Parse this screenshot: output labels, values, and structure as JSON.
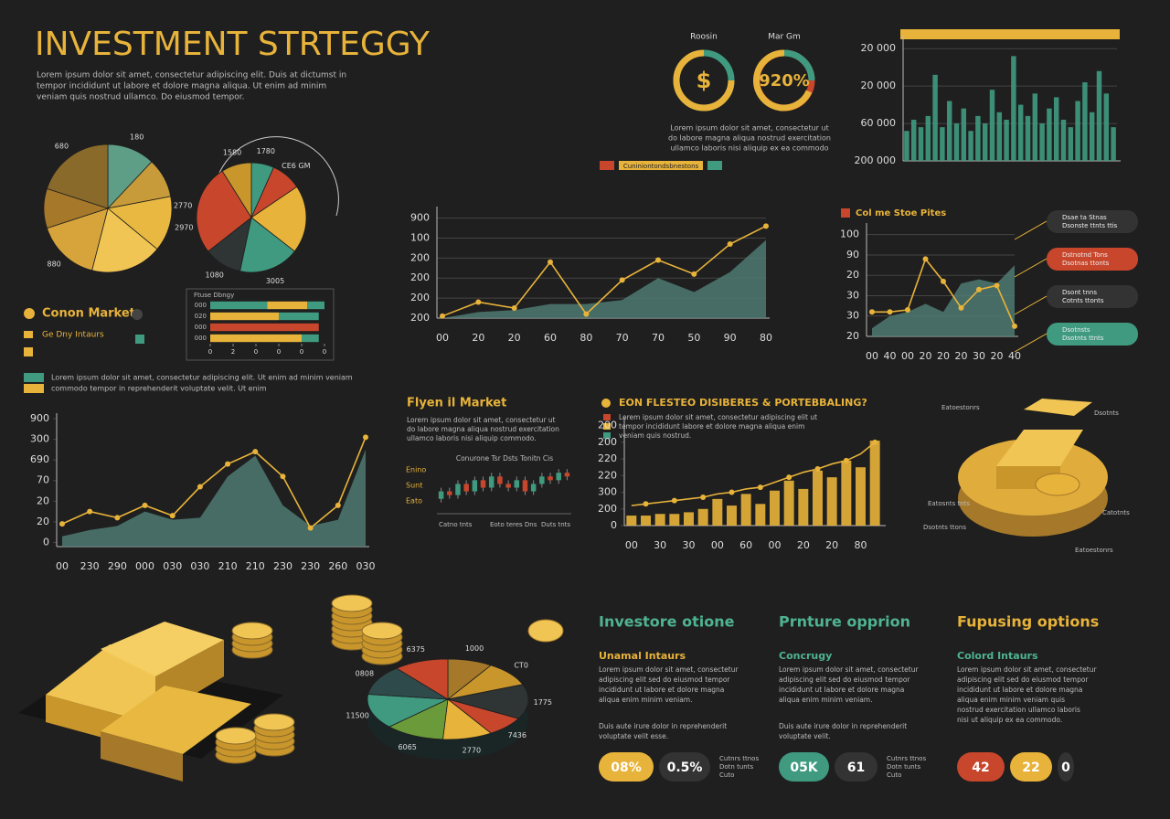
{
  "header": {
    "title": "INVESTMENT STRTEGGY",
    "lines": [
      "Lorem ipsum dolor sit amet, consectetur adipiscing elit. Duis at dictumst in",
      "tempor incididunt ut labore et dolore magna aliqua. Ut enim ad minim",
      "veniam quis nostrud ullamco. Do eiusmod tempor."
    ]
  },
  "gauges": [
    {
      "label": "Roosin",
      "value": "$"
    },
    {
      "label": "Mar Gm",
      "value": "920%"
    }
  ],
  "gauge_note": [
    "Lorem ipsum dolor sit amet, consectetur ut",
    "do labore magna aliqua nostrud exercitation",
    "ullamco laboris nisi aliquip ex ea commodo"
  ],
  "gauge_tag": "Cuniniontondsbnestons",
  "market": {
    "title": "Conon Market",
    "subtitle": "Ge Dny Intaurs",
    "note": [
      "Lorem ipsum dolor sit amet, consectetur adipiscing elit. Ut enim ad minim veniam",
      "commodo tempor in reprehenderit voluptate velit. Ut enim"
    ]
  },
  "callouts": [
    [
      "Dsae ta Stnas",
      "Dsonste ttnts ttis"
    ],
    [
      "Dstnotnd Tons",
      "Dsotnas ttonts"
    ],
    [
      "Dsont tnns",
      "Cotnts ttonts"
    ],
    [
      "Dsotnsts",
      "Dsotnts ttnts"
    ]
  ],
  "flyen": {
    "title": "Flyen il Market",
    "lines": [
      "Lorem ipsum dolor sit amet, consectetur ut",
      "do labore magna aliqua nostrud exercitation",
      "ullamco laboris nisi aliquip commodo."
    ],
    "candle_title": "Conurone Tsr Dsts Tonitn Cis",
    "candle_labels": [
      "Enino",
      "Sunt",
      "Eato"
    ],
    "candle_foot": [
      "Catno tnts",
      "Eoto teres Dns",
      "Duts tnts"
    ]
  },
  "eon": {
    "title": "EON FLESTEO DISIBERES & PORTEBBALING?",
    "lines": [
      "Lorem ipsum dolor sit amet, consectetur adipiscing elit ut",
      "tempor incididunt labore et dolore magna aliqua enim",
      "veniam quis nostrud."
    ]
  },
  "gold_labels": [
    "Eatoestonrs",
    "Dsotnts",
    "Eatosnts tnts",
    "Catotnts",
    "Dsotnts ttons",
    "Eatoestonrs"
  ],
  "cards": [
    {
      "title": "Investore otione",
      "subtitle": "Unamal Intaurs",
      "lines": [
        "Lorem ipsum dolor sit amet, consectetur",
        "adipiscing elit sed do eiusmod tempor",
        "incididunt ut labore et dolore magna",
        "aliqua enim minim veniam."
      ],
      "lines2": [
        "Duis aute irure dolor in reprehenderit",
        "voluptate velit esse."
      ],
      "pills": [
        "08%",
        "0.5%"
      ],
      "pill_note": [
        "Cutnrs ttnos",
        "Dotn tunts",
        "Cuto"
      ]
    },
    {
      "title": "Prnture opprion",
      "subtitle": "Concrugy",
      "lines": [
        "Lorem ipsum dolor sit amet, consectetur",
        "adipiscing elit sed do eiusmod tempor",
        "incididunt ut labore et dolore magna",
        "aliqua enim minim veniam."
      ],
      "lines2": [
        "Duis aute irure dolor in reprehenderit",
        "voluptate velit."
      ],
      "pills": [
        "05K",
        "61"
      ],
      "pill_note": [
        "Cutnrs ttnos",
        "Dotn tunts",
        "Cuto"
      ]
    },
    {
      "title": "Fupusing options",
      "subtitle": "Colord Intaurs",
      "lines": [
        "Lorem ipsum dolor sit amet, consectetur",
        "adipiscing elit sed do eiusmod tempor",
        "incididunt ut labore et dolore magna",
        "aliqua enim minim veniam quis",
        "nostrud exercitation ullamco laboris",
        "nisi ut aliquip ex ea commodo."
      ],
      "pills": [
        "42",
        "22",
        "0"
      ]
    }
  ],
  "chart_data": [
    {
      "type": "pie",
      "categories": [
        "180",
        null,
        "2970",
        null,
        "880",
        null,
        "680"
      ],
      "values": [
        12,
        10,
        14,
        18,
        16,
        10,
        20
      ],
      "colors": [
        "#5e9e86",
        "#c79a3a",
        "#e8b840",
        "#f0c553",
        "#d6a43a",
        "#a5782a",
        "#8a6a2a"
      ]
    },
    {
      "type": "pie",
      "categories": [
        "1780",
        "CE6 GM",
        null,
        "3005",
        "1080",
        "2770",
        "1580"
      ],
      "values": [
        6,
        8,
        18,
        16,
        10,
        24,
        8
      ],
      "colors": [
        "#3f9a7f",
        "#c8462c",
        "#e8b33a",
        "#3f9a7f",
        "#2f3434",
        "#c8462c",
        "#c9962b"
      ]
    },
    {
      "type": "line",
      "categories": [
        "00",
        "20",
        "20",
        "60",
        "80",
        "70",
        "70",
        "50",
        "90",
        "80"
      ],
      "ylim": [
        0,
        5.3
      ],
      "yticks": [
        {
          "value": 0,
          "label": "200"
        },
        {
          "value": 1,
          "label": "200"
        },
        {
          "value": 2,
          "label": "200"
        },
        {
          "value": 3,
          "label": "200"
        },
        {
          "value": 4,
          "label": "100"
        },
        {
          "value": 5,
          "label": "900"
        }
      ],
      "series": [
        {
          "color": "#4d7a72",
          "fill": true,
          "values": [
            0,
            0.3,
            0.4,
            0.7,
            0.7,
            0.9,
            2.0,
            1.3,
            2.3,
            3.9
          ]
        },
        {
          "color": "#e8b33a",
          "values": [
            0.1,
            0.8,
            0.5,
            2.8,
            0.2,
            1.9,
            2.9,
            2.2,
            3.7,
            4.6
          ]
        }
      ],
      "grid": true
    },
    {
      "type": "line",
      "title": "Col me Stoe Pites",
      "categories": [
        "00",
        "40",
        "00",
        "20",
        "20",
        "20",
        "30",
        "20",
        "40"
      ],
      "ylim": [
        0,
        5.3
      ],
      "yticks": [
        {
          "value": 0,
          "label": "20"
        },
        {
          "value": 1,
          "label": "30"
        },
        {
          "value": 2,
          "label": "30"
        },
        {
          "value": 3,
          "label": "20"
        },
        {
          "value": 4,
          "label": "90"
        },
        {
          "value": 5,
          "label": "100"
        }
      ],
      "series": [
        {
          "color": "#4d7a72",
          "fill": true,
          "values": [
            0.4,
            1.0,
            1.2,
            1.6,
            1.2,
            2.6,
            2.8,
            2.6,
            3.5
          ]
        },
        {
          "color": "#e8b33a",
          "values": [
            1.2,
            1.2,
            1.3,
            3.8,
            2.7,
            1.4,
            2.3,
            2.5,
            0.5
          ]
        }
      ],
      "grid": true
    },
    {
      "type": "line",
      "categories": [
        "00",
        "230",
        "290",
        "000",
        "030",
        "030",
        "210",
        "210",
        "230",
        "230",
        "260",
        "030"
      ],
      "ylim": [
        -0.2,
        6
      ],
      "yticks": [
        0,
        {
          "value": 1,
          "label": "20"
        },
        {
          "value": 2,
          "label": "20"
        },
        {
          "value": 3,
          "label": "70"
        },
        {
          "value": 4,
          "label": "690"
        },
        {
          "value": 5,
          "label": "300"
        },
        {
          "value": 6,
          "label": "900"
        }
      ],
      "series": [
        {
          "color": "#4d7a72",
          "fill": true,
          "values": [
            0.3,
            0.6,
            0.8,
            1.5,
            1.1,
            1.2,
            3.2,
            4.2,
            1.8,
            0.8,
            1.1,
            4.5
          ]
        },
        {
          "color": "#e8b33a",
          "values": [
            0.9,
            1.5,
            1.2,
            1.8,
            1.3,
            2.7,
            3.8,
            4.4,
            3.2,
            0.7,
            1.8,
            5.1
          ]
        }
      ],
      "grid": false
    },
    {
      "type": "bar",
      "ylim": [
        0,
        3.2
      ],
      "yticks": [
        {
          "value": 0,
          "label": "200 000"
        },
        {
          "value": 1,
          "label": "60 000"
        },
        {
          "value": 2,
          "label": "20 000"
        },
        {
          "value": 3,
          "label": "20 000"
        }
      ],
      "series": [
        {
          "color": "#3f9a7f",
          "values": [
            0.8,
            1.1,
            0.9,
            1.2,
            2.3,
            0.9,
            1.6,
            1.0,
            1.4,
            0.8,
            1.2,
            1.0,
            1.9,
            1.3,
            1.1,
            2.8,
            1.5,
            1.2,
            1.8,
            1.0,
            1.4,
            1.7,
            1.1,
            0.9,
            1.6,
            2.1,
            1.3,
            2.4,
            1.8,
            0.9
          ]
        }
      ],
      "grid": true
    },
    {
      "type": "hbar",
      "title": "Ftuse Dbngy",
      "categories": [
        "000",
        "020",
        "000",
        "000"
      ],
      "xlim": [
        0,
        10
      ],
      "xticks": [
        0,
        2,
        {
          "value": 4,
          "label": "0"
        },
        {
          "value": 6,
          "label": "0"
        },
        {
          "value": 8,
          "label": "0"
        },
        {
          "value": 10,
          "label": "0"
        }
      ],
      "series": [
        {
          "color": "#3f9a7f",
          "values": [
            5,
            0,
            0,
            0
          ]
        },
        {
          "color": "#e8b33a",
          "values": [
            3.5,
            6,
            0,
            8
          ]
        },
        {
          "color": "#c8462c",
          "values": [
            0,
            0,
            9.5,
            0
          ]
        },
        {
          "color": "#3f9a7f",
          "values": [
            1.5,
            3.5,
            0,
            1.5
          ]
        }
      ]
    },
    {
      "type": "bar",
      "categories": [
        "00",
        null,
        "30",
        null,
        "30",
        null,
        "00",
        null,
        "60",
        null,
        "00",
        null,
        "20",
        null,
        "20",
        null,
        "80",
        null
      ],
      "ylim": [
        0,
        6.2
      ],
      "yticks": [
        0,
        {
          "value": 1,
          "label": "200"
        },
        {
          "value": 2,
          "label": "300"
        },
        {
          "value": 3,
          "label": "220"
        },
        {
          "value": 4,
          "label": "220"
        },
        {
          "value": 5,
          "label": "200"
        },
        {
          "value": 6,
          "label": "200"
        }
      ],
      "series": [
        {
          "color": "#e8b33a",
          "values": [
            0.6,
            0.6,
            0.7,
            0.7,
            0.8,
            1.0,
            1.6,
            1.2,
            1.9,
            1.3,
            2.1,
            2.7,
            2.2,
            3.3,
            2.9,
            3.9,
            3.5,
            5.1
          ]
        },
        {
          "color": "#e8b33a",
          "type": "line",
          "values": [
            1.2,
            1.3,
            1.4,
            1.5,
            1.6,
            1.7,
            1.9,
            2.0,
            2.2,
            2.3,
            2.6,
            2.9,
            3.2,
            3.4,
            3.7,
            3.9,
            4.3,
            5.0
          ]
        }
      ],
      "grid": false
    },
    {
      "type": "candlestick",
      "ylim": [
        0,
        7
      ],
      "up_color": "#3f9a7f",
      "down_color": "#c8462c",
      "open": [
        2,
        3,
        2.5,
        4,
        3,
        4.5,
        3.5,
        5,
        4,
        3.5,
        4.5,
        3,
        4,
        5,
        4.5,
        5.5
      ],
      "close": [
        3,
        2.5,
        4,
        3,
        4.5,
        3.5,
        5,
        4,
        3.5,
        4.5,
        3,
        4,
        5,
        4.5,
        5.5,
        5
      ]
    },
    {
      "type": "pie",
      "categories": [
        "1000",
        "CT0",
        "1775",
        "7436",
        "2770",
        "6065",
        "11500",
        "0808",
        "6375"
      ],
      "values": [
        9,
        10,
        14,
        8,
        10,
        12,
        14,
        12,
        11
      ],
      "colors": [
        "#a5782a",
        "#c9962b",
        "#2f3434",
        "#c8462c",
        "#e8b33a",
        "#6a9a3a",
        "#3f9a7f",
        "#2f4a4a",
        "#c8462c"
      ]
    }
  ]
}
